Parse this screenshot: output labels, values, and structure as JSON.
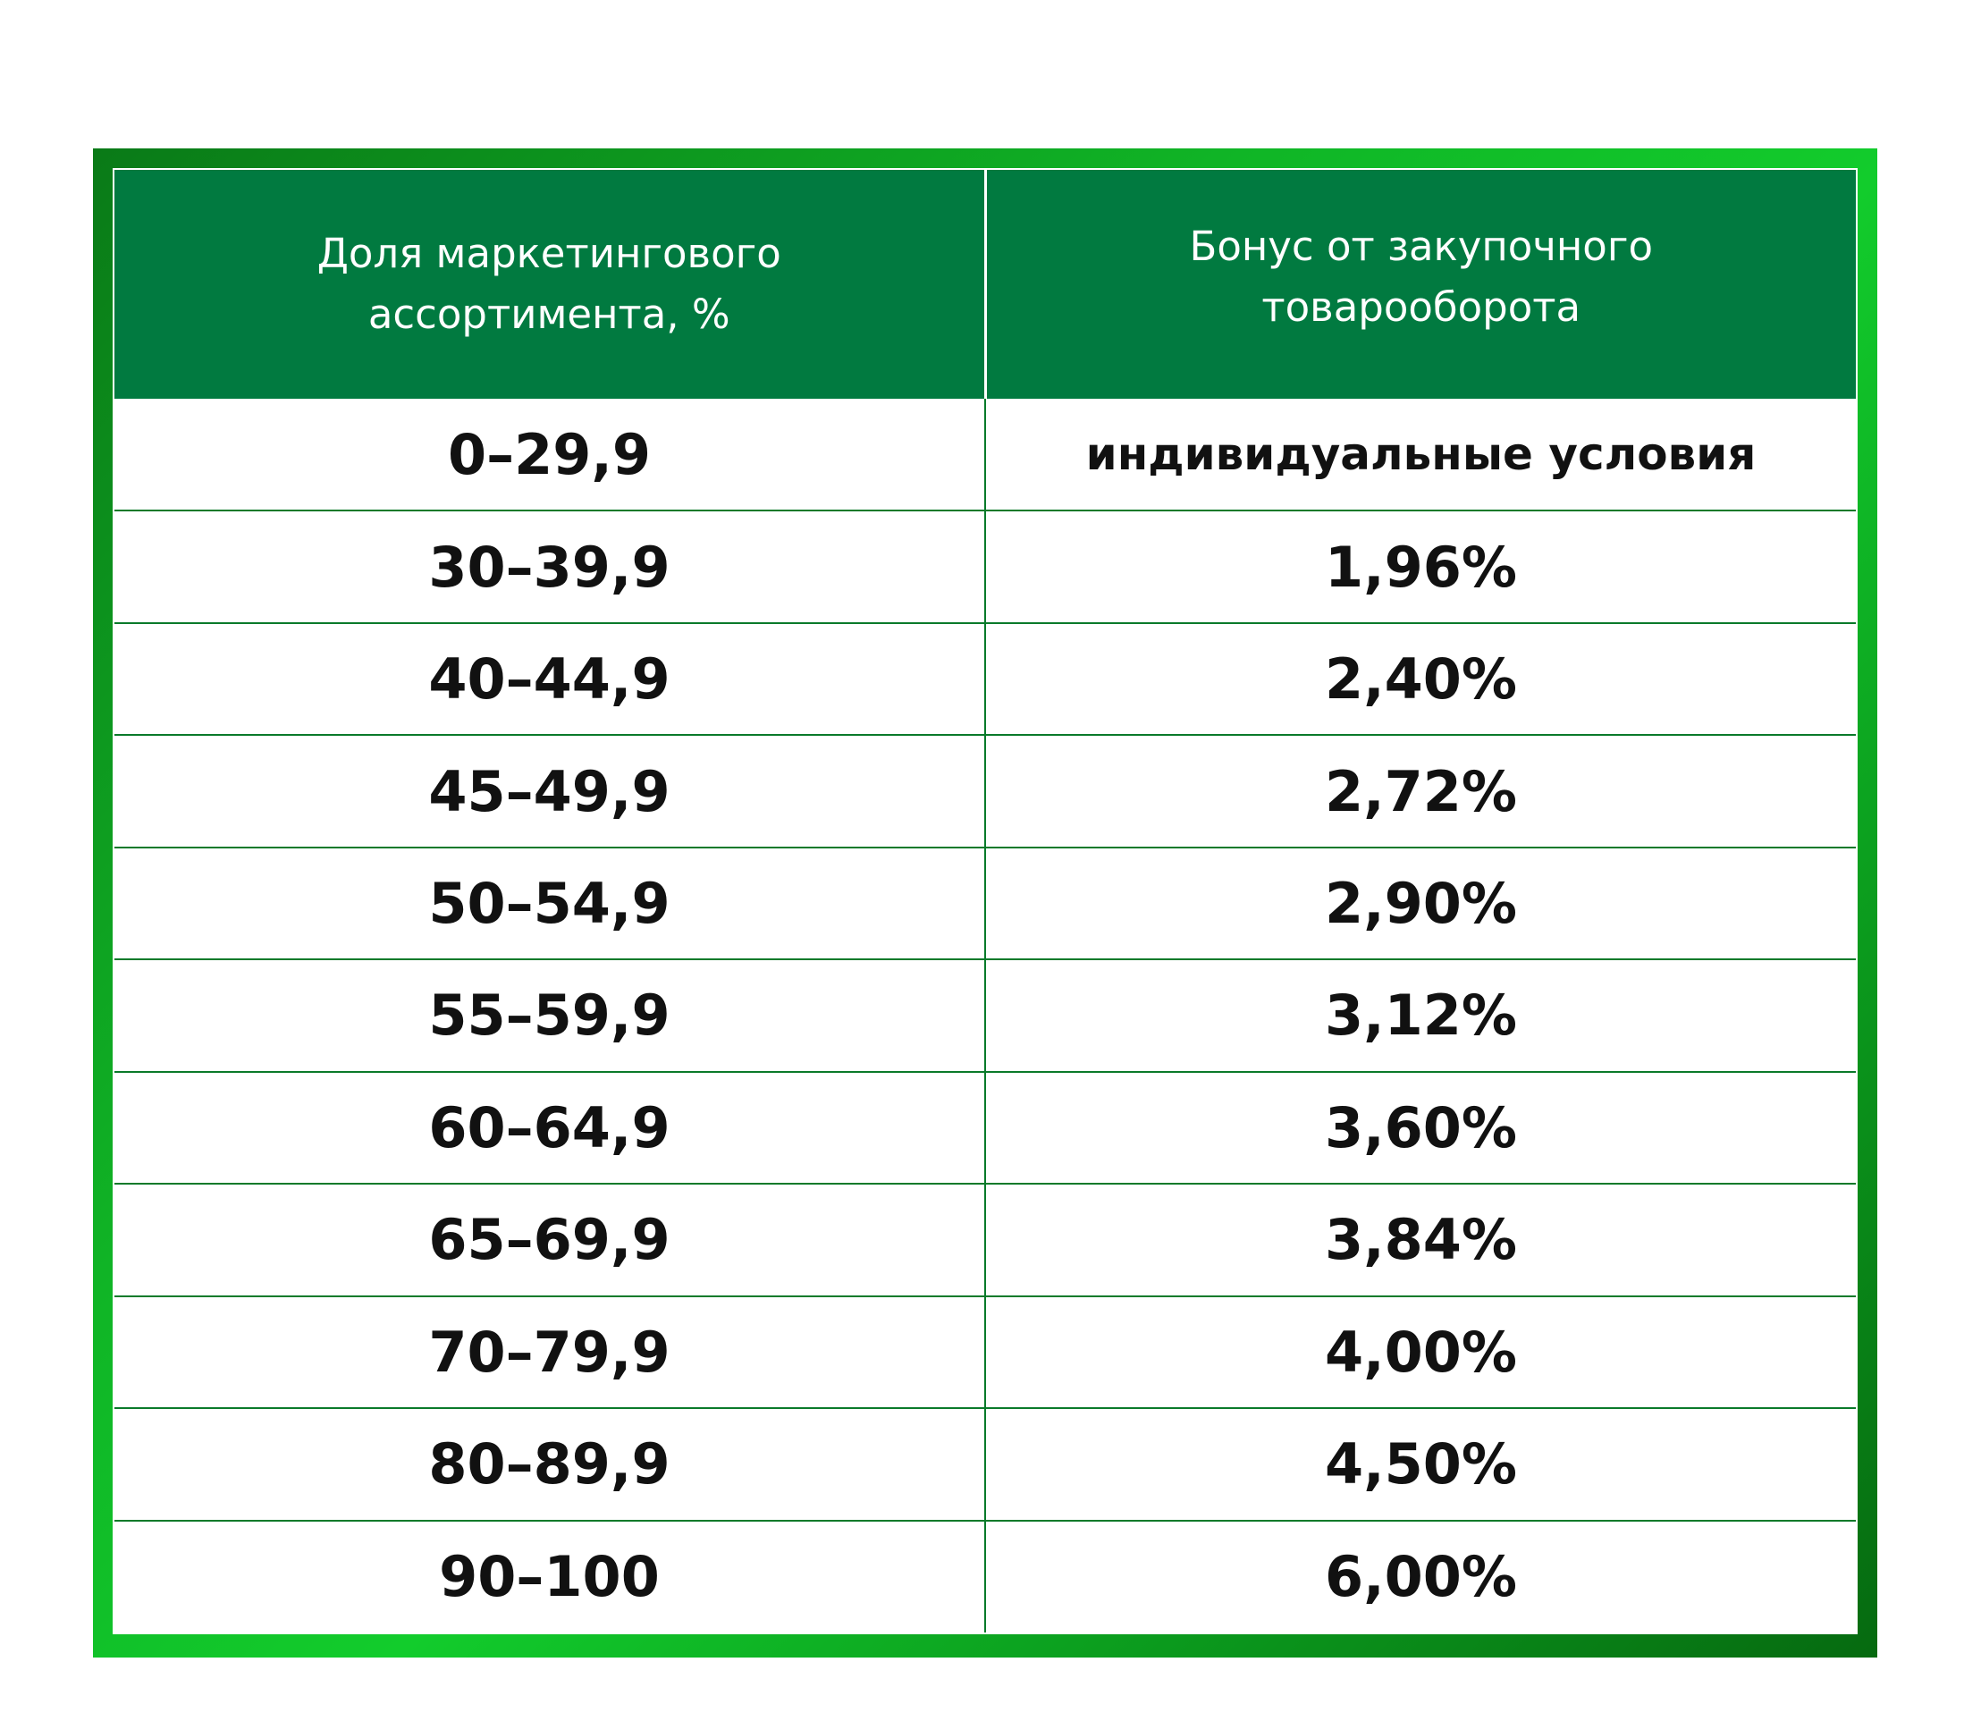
{
  "table": {
    "headers": [
      [
        "Доля маркетингового",
        "ассортимента, %"
      ],
      [
        "Бонус от закупочного",
        "товарооборота"
      ]
    ],
    "rows": [
      [
        "0–29,9",
        "индивидуальные условия"
      ],
      [
        "30–39,9",
        "1,96%"
      ],
      [
        "40–44,9",
        "2,40%"
      ],
      [
        "45–49,9",
        "2,72%"
      ],
      [
        "50–54,9",
        "2,90%"
      ],
      [
        "55–59,9",
        "3,12%"
      ],
      [
        "60–64,9",
        "3,60%"
      ],
      [
        "65–69,9",
        "3,84%"
      ],
      [
        "70–79,9",
        "4,00%"
      ],
      [
        "80–89,9",
        "4,50%"
      ],
      [
        "90–100",
        "6,00%"
      ]
    ]
  },
  "colors": {
    "header_bg": "#017a40",
    "frame_green": "#12cc2c",
    "grid_line": "#0a7a2a"
  }
}
